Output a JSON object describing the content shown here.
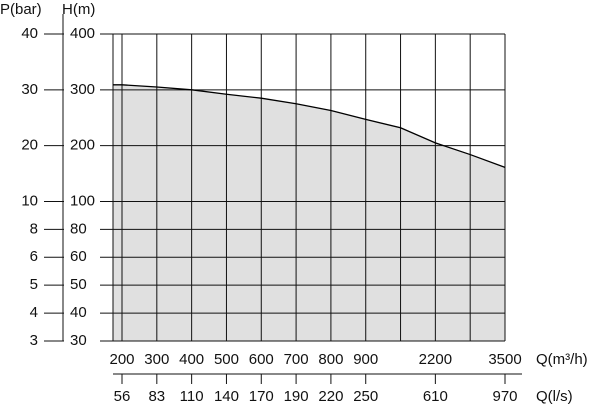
{
  "chart_data": {
    "type": "line",
    "y_label": "H(m)",
    "y2_label": "P(bar)",
    "x_label": "Q(m³/h)",
    "x2_label": "Q(l/s)",
    "categories": [
      "200",
      "300",
      "400",
      "500",
      "600",
      "700",
      "800",
      "900",
      null,
      "2200",
      null,
      "3500"
    ],
    "x2_categories": [
      "56",
      "83",
      "110",
      "140",
      "170",
      "190",
      "220",
      "250",
      null,
      "610",
      null,
      "970"
    ],
    "ylim": [
      30,
      400
    ],
    "yticks": [
      400,
      300,
      200,
      100,
      80,
      60,
      50,
      40,
      30
    ],
    "y2lim": [
      3,
      40
    ],
    "y2ticks": [
      40,
      30,
      20,
      10,
      8,
      6,
      5,
      4,
      3
    ],
    "grid": true,
    "series": [
      {
        "color": "#000000",
        "fill": "#e0e0e0",
        "values": [
          309,
          305,
          300,
          292,
          285,
          275,
          263,
          247,
          232,
          205,
          184,
          161
        ]
      }
    ]
  }
}
